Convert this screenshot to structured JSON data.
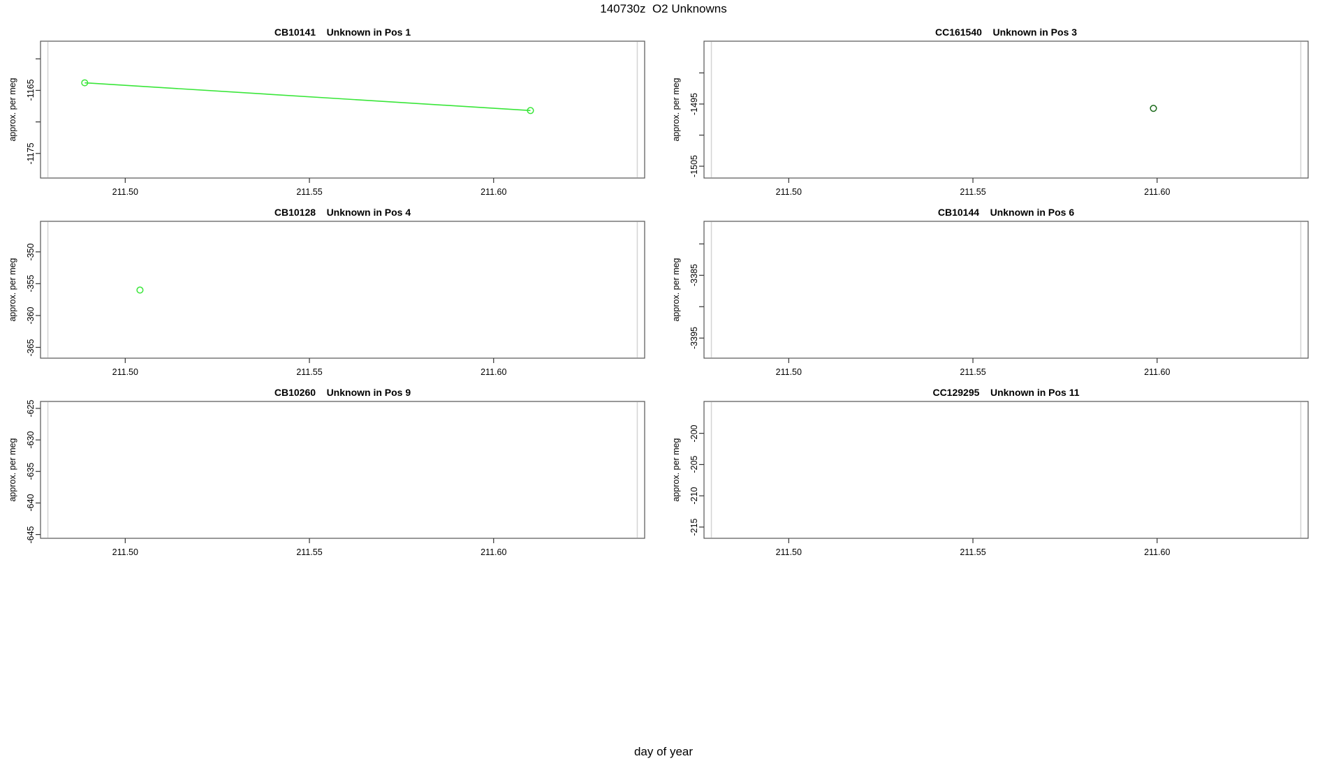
{
  "title": "140730z  O2 Unknowns",
  "bottom_axis_label": "day of year",
  "colors": {
    "bright_green": "#39e639",
    "dark_green": "#186818",
    "edge_line_gray": "#d4d4d4",
    "box_border": "#555555",
    "tick": "#333333"
  },
  "chart_data": {
    "type": "line",
    "title": "140730z  O2 Unknowns",
    "xlabel": "day of year",
    "layout": {
      "rows": 3,
      "cols": 2,
      "grid": "off",
      "legend": "none"
    },
    "xlim": [
      211.477,
      211.641
    ],
    "x_ticks": [
      211.5,
      211.55,
      211.6
    ],
    "x_tick_labels": [
      "211.50",
      "211.55",
      "211.60"
    ],
    "edge_vlines_x": [
      211.479,
      211.639
    ],
    "subplots": [
      {
        "title": "CB10141    Unknown in Pos 1",
        "ylabel": "approx. per meg",
        "ylim": [
          -1178.9,
          -1157.2
        ],
        "y_ticks": [
          -1160,
          -1165,
          -1170,
          -1175
        ],
        "y_tick_labels": [
          "",
          "-1165",
          "",
          "-1175"
        ],
        "series": [
          {
            "name": "CB10141",
            "color_key": "bright_green",
            "line": true,
            "points": [
              [
                211.489,
                -1163.8
              ],
              [
                211.61,
                -1168.2
              ]
            ]
          }
        ]
      },
      {
        "title": "CC161540    Unknown in Pos 3",
        "ylabel": "approx. per meg",
        "ylim": [
          -1506.9,
          -1484.9
        ],
        "y_ticks": [
          -1490,
          -1495,
          -1500,
          -1505
        ],
        "y_tick_labels": [
          "",
          "-1495",
          "",
          "-1505"
        ],
        "series": [
          {
            "name": "CC161540",
            "color_key": "dark_green",
            "line": false,
            "points": [
              [
                211.599,
                -1495.7
              ]
            ]
          }
        ]
      },
      {
        "title": "CB10128    Unknown in Pos 4",
        "ylabel": "approx. per meg",
        "ylim": [
          -366.7,
          -345.2
        ],
        "y_ticks": [
          -350,
          -355,
          -360,
          -365
        ],
        "y_tick_labels": [
          "-350",
          "-355",
          "-360",
          "-365"
        ],
        "series": [
          {
            "name": "CB10128",
            "color_key": "bright_green",
            "line": false,
            "points": [
              [
                211.504,
                -356.0
              ]
            ]
          }
        ]
      },
      {
        "title": "CB10144    Unknown in Pos 6",
        "ylabel": "approx. per meg",
        "ylim": [
          -3398.2,
          -3376.4
        ],
        "y_ticks": [
          -3380,
          -3385,
          -3390,
          -3395
        ],
        "y_tick_labels": [
          "",
          "-3385",
          "",
          "-3395"
        ],
        "series": []
      },
      {
        "title": "CB10260    Unknown in Pos 9",
        "ylabel": "approx. per meg",
        "ylim": [
          -645.6,
          -623.9
        ],
        "y_ticks": [
          -625,
          -630,
          -635,
          -640,
          -645
        ],
        "y_tick_labels": [
          "-625",
          "-630",
          "-635",
          "-640",
          "-645"
        ],
        "series": []
      },
      {
        "title": "CC129295    Unknown in Pos 11",
        "ylabel": "approx. per meg",
        "ylim": [
          -216.8,
          -194.9
        ],
        "y_ticks": [
          -200,
          -205,
          -210,
          -215
        ],
        "y_tick_labels": [
          "-200",
          "-205",
          "-210",
          "-215"
        ],
        "series": []
      }
    ]
  }
}
